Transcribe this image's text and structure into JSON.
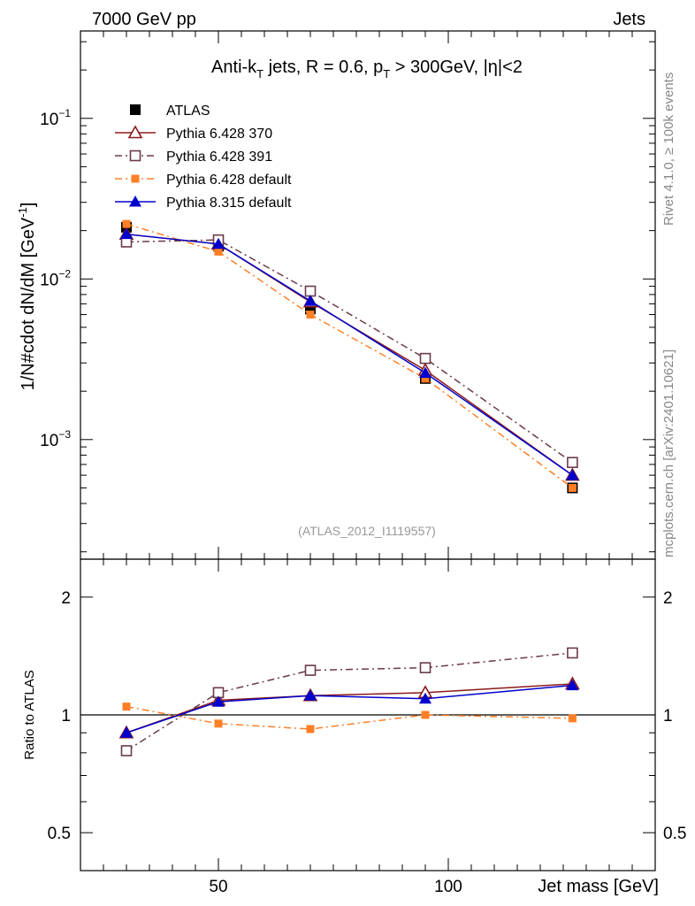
{
  "header": {
    "left": "7000 GeV pp",
    "right": "Jets"
  },
  "side_text": {
    "rivet": "Rivet 4.1.0, ≥ 100k events",
    "mcplots": "mcplots.cern.ch [arXiv:2401.10621]"
  },
  "colors": {
    "atlas": "#000000",
    "py370": "#8b1a1a",
    "py391": "#6b3a4a",
    "py6def": "#ff7f27",
    "py8def": "#0000cc"
  },
  "chart_data": [
    {
      "type": "line",
      "title": "Anti-k_T jets, R = 0.6, p_T > 300GeV, |η|<2",
      "title_parts": {
        "a": "Anti-k",
        "a_sub": "T",
        "b": " jets, R = 0.6, p",
        "b_sub": "T",
        "c": " > 300GeV, |η|<2"
      },
      "watermark": "(ATLAS_2012_I1119557)",
      "ylabel": "1/N#cdot dN/dM [GeV",
      "ylabel_sup": "-1",
      "ylabel_close": "]",
      "yscale": "log",
      "ylim": [
        0.00018,
        0.35
      ],
      "xlim": [
        20,
        145
      ],
      "yticks": [
        {
          "label": "10",
          "exp": "−1",
          "value": 0.1
        },
        {
          "label": "10",
          "exp": "−2",
          "value": 0.01
        },
        {
          "label": "10",
          "exp": "−3",
          "value": 0.001
        }
      ],
      "x": [
        30,
        50,
        70,
        95,
        127
      ],
      "series": [
        {
          "name": "ATLAS",
          "key": "atlas",
          "marker": "square-filled",
          "line": "none",
          "values": [
            0.021,
            0.016,
            0.0065,
            0.0024,
            0.0005
          ]
        },
        {
          "name": "Pythia 6.428 370",
          "key": "py370",
          "marker": "triangle-open",
          "line": "solid",
          "values": [
            0.019,
            0.0165,
            0.0072,
            0.0027,
            0.0006
          ]
        },
        {
          "name": "Pythia 6.428 391",
          "key": "py391",
          "marker": "square-open",
          "line": "dashdot",
          "values": [
            0.017,
            0.0175,
            0.0084,
            0.0032,
            0.00072
          ]
        },
        {
          "name": "Pythia 6.428 default",
          "key": "py6def",
          "marker": "square-small",
          "line": "dashdot",
          "values": [
            0.022,
            0.0148,
            0.006,
            0.0024,
            0.0005
          ]
        },
        {
          "name": "Pythia 8.315 default",
          "key": "py8def",
          "marker": "triangle-filled",
          "line": "solid",
          "values": [
            0.019,
            0.0165,
            0.0073,
            0.0026,
            0.0006
          ]
        }
      ]
    },
    {
      "type": "line",
      "ylabel": "Ratio to ATLAS",
      "xlabel": "Jet mass [GeV]",
      "yscale": "log",
      "ylim": [
        0.4,
        2.5
      ],
      "xlim": [
        20,
        145
      ],
      "yticks": [
        {
          "label": "2",
          "value": 2
        },
        {
          "label": "1",
          "value": 1
        },
        {
          "label": "0.5",
          "value": 0.5
        }
      ],
      "xticks": [
        {
          "label": "50",
          "value": 50
        },
        {
          "label": "100",
          "value": 100
        }
      ],
      "x": [
        30,
        50,
        70,
        95,
        127
      ],
      "series": [
        {
          "name": "Pythia 6.428 370",
          "key": "py370",
          "marker": "triangle-open",
          "line": "solid",
          "values": [
            0.9,
            1.09,
            1.12,
            1.14,
            1.2
          ]
        },
        {
          "name": "Pythia 6.428 391",
          "key": "py391",
          "marker": "square-open",
          "line": "dashdot",
          "values": [
            0.81,
            1.14,
            1.3,
            1.32,
            1.44
          ]
        },
        {
          "name": "Pythia 6.428 default",
          "key": "py6def",
          "marker": "square-small",
          "line": "dashdot",
          "values": [
            1.05,
            0.95,
            0.92,
            1.0,
            0.98
          ]
        },
        {
          "name": "Pythia 8.315 default",
          "key": "py8def",
          "marker": "triangle-filled",
          "line": "solid",
          "values": [
            0.9,
            1.08,
            1.12,
            1.1,
            1.19
          ]
        }
      ]
    }
  ]
}
